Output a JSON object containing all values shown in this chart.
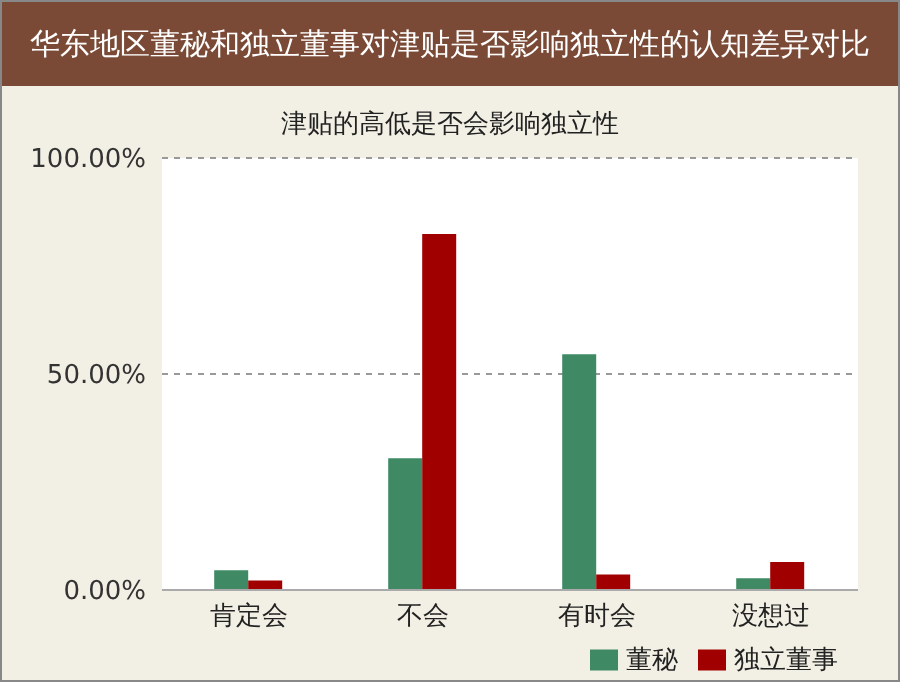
{
  "chart_data": {
    "type": "bar",
    "title": "华东地区董秘和独立董事对津贴是否影响独立性的认知差异对比",
    "subtitle": "津贴的高低是否会影响独立性",
    "categories": [
      "肯定会",
      "不会",
      "有时会",
      "没想过"
    ],
    "series": [
      {
        "name": "董秘",
        "color": "#3f8a64",
        "values": [
          4.6,
          30.5,
          54.6,
          2.7
        ]
      },
      {
        "name": "独立董事",
        "color": "#a00000",
        "values": [
          2.2,
          82.4,
          3.6,
          6.5
        ]
      }
    ],
    "ylim": [
      0,
      100
    ],
    "yticks": [
      {
        "value": 0,
        "label": "0.00%"
      },
      {
        "value": 50,
        "label": "50.00%"
      },
      {
        "value": 100,
        "label": "100.00%"
      }
    ],
    "grid": "y",
    "legend": "bottom right"
  }
}
